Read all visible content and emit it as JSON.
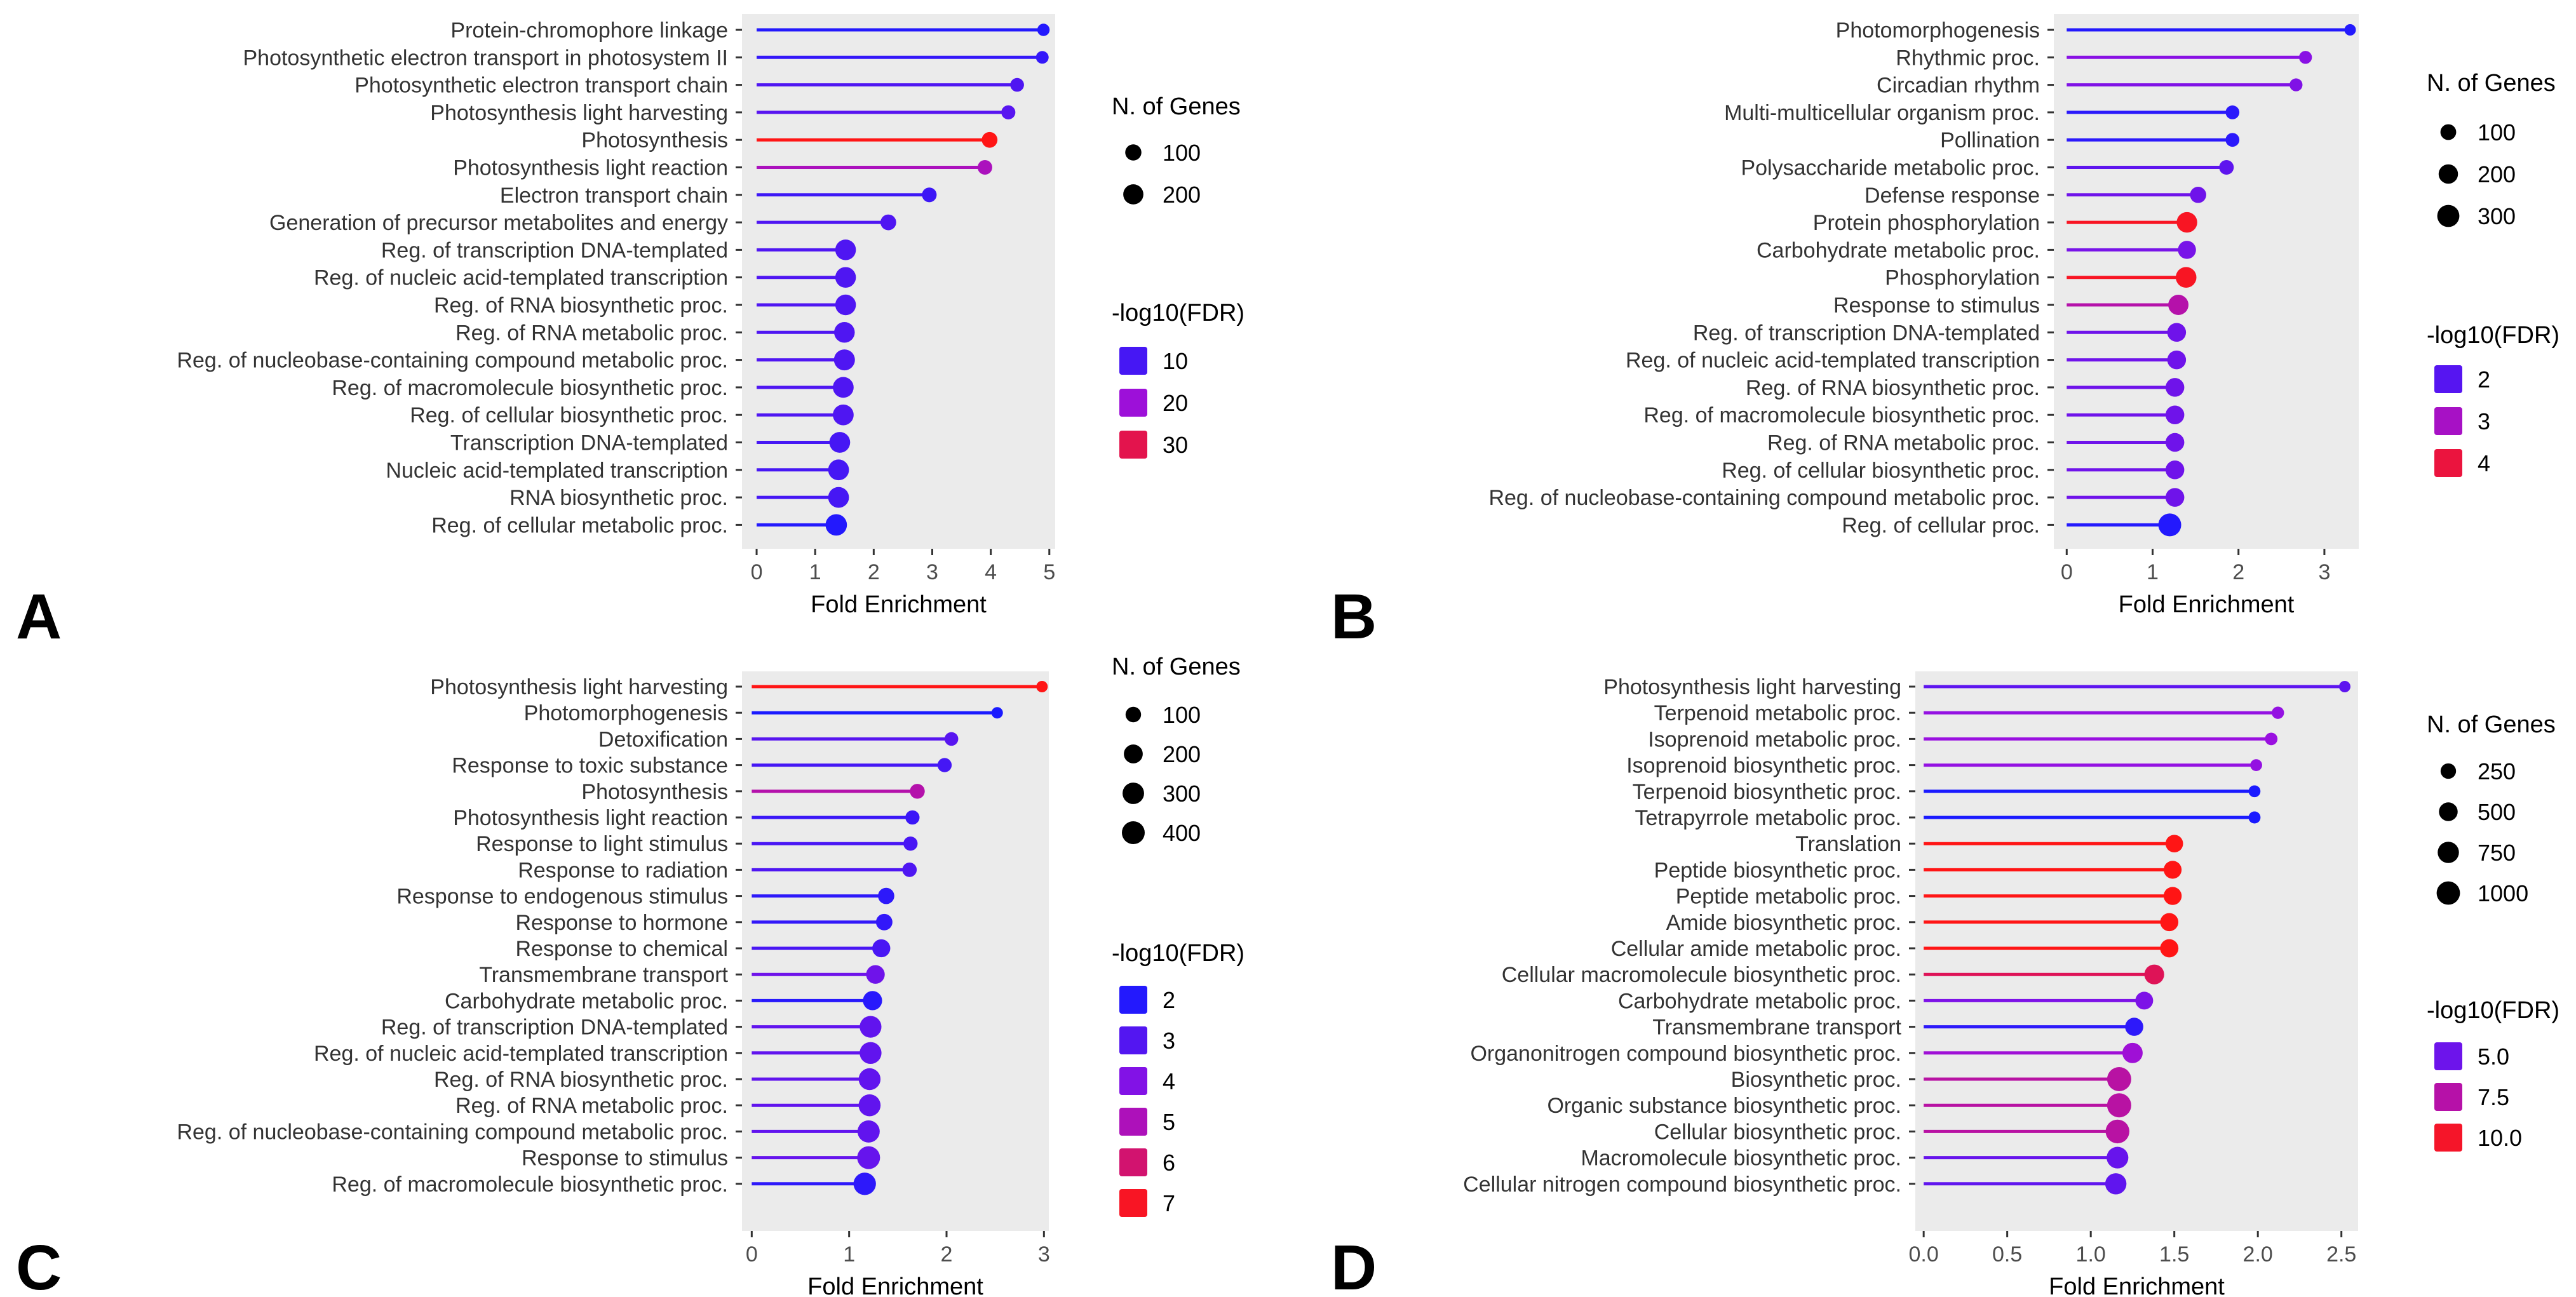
{
  "chart_data": [
    {
      "panel_label": "A",
      "type": "lollipop",
      "xlabel": "Fold Enrichment",
      "xlim": [
        -0.25,
        5.1
      ],
      "xticks": [
        0,
        1,
        2,
        3,
        4,
        5
      ],
      "categories": [
        "Protein-chromophore linkage",
        "Photosynthetic electron transport in photosystem II",
        "Photosynthetic electron transport chain",
        "Photosynthesis light harvesting",
        "Photosynthesis",
        "Photosynthesis light reaction",
        "Electron transport chain",
        "Generation of precursor metabolites and energy",
        "Reg. of transcription DNA-templated",
        "Reg. of nucleic acid-templated transcription",
        "Reg. of RNA biosynthetic proc.",
        "Reg. of RNA metabolic proc.",
        "Reg. of nucleobase-containing compound metabolic proc.",
        "Reg. of macromolecule biosynthetic proc.",
        "Reg. of cellular biosynthetic proc.",
        "Transcription DNA-templated",
        "Nucleic acid-templated transcription",
        "RNA biosynthetic proc.",
        "Reg. of cellular metabolic proc."
      ],
      "fold_enrichment": [
        4.9,
        4.88,
        4.45,
        4.3,
        3.98,
        3.9,
        2.95,
        2.25,
        1.52,
        1.52,
        1.52,
        1.5,
        1.5,
        1.48,
        1.48,
        1.42,
        1.4,
        1.4,
        1.36
      ],
      "n_genes": [
        35,
        40,
        55,
        60,
        90,
        70,
        70,
        90,
        215,
        215,
        215,
        215,
        225,
        220,
        220,
        220,
        220,
        220,
        240
      ],
      "neg_log10_fdr": [
        6,
        8,
        11,
        12,
        34,
        22,
        9,
        11,
        11,
        11,
        11,
        11,
        11,
        11,
        11,
        10,
        10,
        10,
        6
      ],
      "size_legend": {
        "title": "N. of Genes",
        "values": [
          100,
          200
        ],
        "labels": [
          "100",
          "200"
        ]
      },
      "color_legend": {
        "title": "-log10(FDR)",
        "values": [
          10,
          20,
          30
        ],
        "labels": [
          "10",
          "20",
          "30"
        ],
        "range": [
          5,
          34
        ],
        "colors": [
          "#1a1aff",
          "#9a10e0",
          "#ff1515"
        ]
      }
    },
    {
      "panel_label": "B",
      "type": "lollipop",
      "xlabel": "Fold Enrichment",
      "xlim": [
        -0.15,
        3.4
      ],
      "xticks": [
        0,
        1,
        2,
        3
      ],
      "categories": [
        "Photomorphogenesis",
        "Rhythmic proc.",
        "Circadian rhythm",
        "Multi-multicellular organism proc.",
        "Pollination",
        "Polysaccharide metabolic proc.",
        "Defense response",
        "Protein phosphorylation",
        "Carbohydrate metabolic proc.",
        "Phosphorylation",
        "Response to stimulus",
        "Reg. of transcription DNA-templated",
        "Reg. of nucleic acid-templated transcription",
        "Reg. of RNA biosynthetic proc.",
        "Reg. of macromolecule biosynthetic proc.",
        "Reg. of RNA metabolic proc.",
        "Reg. of cellular biosynthetic proc.",
        "Reg. of nucleobase-containing compound metabolic proc.",
        "Reg. of cellular proc."
      ],
      "fold_enrichment": [
        3.3,
        2.78,
        2.67,
        1.93,
        1.93,
        1.86,
        1.53,
        1.4,
        1.4,
        1.39,
        1.3,
        1.28,
        1.28,
        1.26,
        1.26,
        1.26,
        1.26,
        1.26,
        1.2
      ],
      "n_genes": [
        25,
        45,
        45,
        60,
        60,
        75,
        110,
        240,
        160,
        245,
        230,
        180,
        180,
        180,
        180,
        180,
        180,
        180,
        330
      ],
      "neg_log10_fdr": [
        1.4,
        2.6,
        2.5,
        1.5,
        1.5,
        2.1,
        2.3,
        4.2,
        2.4,
        4.2,
        3.2,
        2.3,
        2.3,
        2.3,
        2.3,
        2.3,
        2.3,
        2.3,
        1.4
      ],
      "size_legend": {
        "title": "N. of Genes",
        "values": [
          100,
          200,
          300
        ],
        "labels": [
          "100",
          "200",
          "300"
        ]
      },
      "color_legend": {
        "title": "-log10(FDR)",
        "values": [
          2,
          3,
          4
        ],
        "labels": [
          "2",
          "3",
          "4"
        ],
        "range": [
          1.3,
          4.3
        ],
        "colors": [
          "#1a1aff",
          "#9a10e0",
          "#ff1515"
        ]
      }
    },
    {
      "panel_label": "C",
      "type": "lollipop",
      "xlabel": "Fold Enrichment",
      "xlim": [
        -0.1,
        3.05
      ],
      "xticks": [
        0,
        1,
        2,
        3
      ],
      "categories": [
        "Photosynthesis light harvesting",
        "Photomorphogenesis",
        "Detoxification",
        "Response to toxic substance",
        "Photosynthesis",
        "Photosynthesis light reaction",
        "Response to light stimulus",
        "Response to radiation",
        "Response to endogenous stimulus",
        "Response to hormone",
        "Response to chemical",
        "Transmembrane transport",
        "Carbohydrate metabolic proc.",
        "Reg. of transcription DNA-templated",
        "Reg. of nucleic acid-templated transcription",
        "Reg. of RNA biosynthetic proc.",
        "Reg. of RNA metabolic proc.",
        "Reg. of nucleobase-containing compound metabolic proc.",
        "Response to stimulus",
        "Reg. of macromolecule biosynthetic proc."
      ],
      "fold_enrichment": [
        2.98,
        2.52,
        2.05,
        1.98,
        1.7,
        1.65,
        1.63,
        1.62,
        1.38,
        1.36,
        1.33,
        1.27,
        1.24,
        1.22,
        1.22,
        1.21,
        1.21,
        1.2,
        1.2,
        1.16
      ],
      "n_genes": [
        25,
        25,
        60,
        70,
        85,
        70,
        70,
        75,
        120,
        125,
        170,
        190,
        210,
        310,
        315,
        315,
        320,
        330,
        360,
        340
      ],
      "neg_log10_fdr": [
        7.2,
        1.8,
        3.1,
        2.7,
        5.2,
        2.5,
        2.8,
        2.9,
        2.2,
        2.3,
        2.8,
        3.6,
        2.1,
        3.3,
        3.3,
        3.3,
        3.3,
        3.3,
        3.4,
        2.2
      ],
      "size_legend": {
        "title": "N. of Genes",
        "values": [
          100,
          200,
          300,
          400
        ],
        "labels": [
          "100",
          "200",
          "300",
          "400"
        ]
      },
      "color_legend": {
        "title": "-log10(FDR)",
        "values": [
          2,
          3,
          4,
          5,
          6,
          7
        ],
        "labels": [
          "2",
          "3",
          "4",
          "5",
          "6",
          "7"
        ],
        "range": [
          1.8,
          7.2
        ],
        "colors": [
          "#1a1aff",
          "#9a10e0",
          "#ff1515"
        ]
      }
    },
    {
      "panel_label": "D",
      "type": "lollipop",
      "xlabel": "Fold Enrichment",
      "xlim": [
        -0.05,
        2.6
      ],
      "xticks": [
        0.0,
        0.5,
        1.0,
        1.5,
        2.0,
        2.5
      ],
      "categories": [
        "Photosynthesis light harvesting",
        "Terpenoid metabolic proc.",
        "Isoprenoid metabolic proc.",
        "Isoprenoid biosynthetic proc.",
        "Terpenoid biosynthetic proc.",
        "Tetrapyrrole metabolic proc.",
        "Translation",
        "Peptide biosynthetic proc.",
        "Peptide metabolic proc.",
        "Amide biosynthetic proc.",
        "Cellular amide metabolic proc.",
        "Cellular macromolecule biosynthetic proc.",
        "Carbohydrate metabolic proc.",
        "Transmembrane transport",
        "Organonitrogen compound biosynthetic proc.",
        "Biosynthetic proc.",
        "Organic substance biosynthetic proc.",
        "Cellular biosynthetic proc.",
        "Macromolecule biosynthetic proc.",
        "Cellular nitrogen compound biosynthetic proc."
      ],
      "fold_enrichment": [
        2.52,
        2.12,
        2.08,
        1.99,
        1.98,
        1.98,
        1.5,
        1.49,
        1.49,
        1.47,
        1.47,
        1.38,
        1.32,
        1.26,
        1.25,
        1.17,
        1.17,
        1.16,
        1.16,
        1.15
      ],
      "n_genes": [
        60,
        90,
        100,
        75,
        75,
        80,
        400,
        430,
        440,
        450,
        460,
        600,
        420,
        450,
        650,
        1100,
        1100,
        1050,
        800,
        750
      ],
      "neg_log10_fdr": [
        4.5,
        6.2,
        6.4,
        6.2,
        2.4,
        2.4,
        10.4,
        10.4,
        10.4,
        10.4,
        10.4,
        9.1,
        5.5,
        3.0,
        6.6,
        7.6,
        7.6,
        7.6,
        4.8,
        4.6
      ],
      "size_legend": {
        "title": "N. of Genes",
        "values": [
          250,
          500,
          750,
          1000
        ],
        "labels": [
          "250",
          "500",
          "750",
          "1000"
        ]
      },
      "color_legend": {
        "title": "-log10(FDR)",
        "values": [
          5.0,
          7.5,
          10.0
        ],
        "labels": [
          "5.0",
          "7.5",
          "10.0"
        ],
        "range": [
          2.4,
          10.4
        ],
        "colors": [
          "#1a1aff",
          "#9a10e0",
          "#ff1515"
        ]
      }
    }
  ]
}
